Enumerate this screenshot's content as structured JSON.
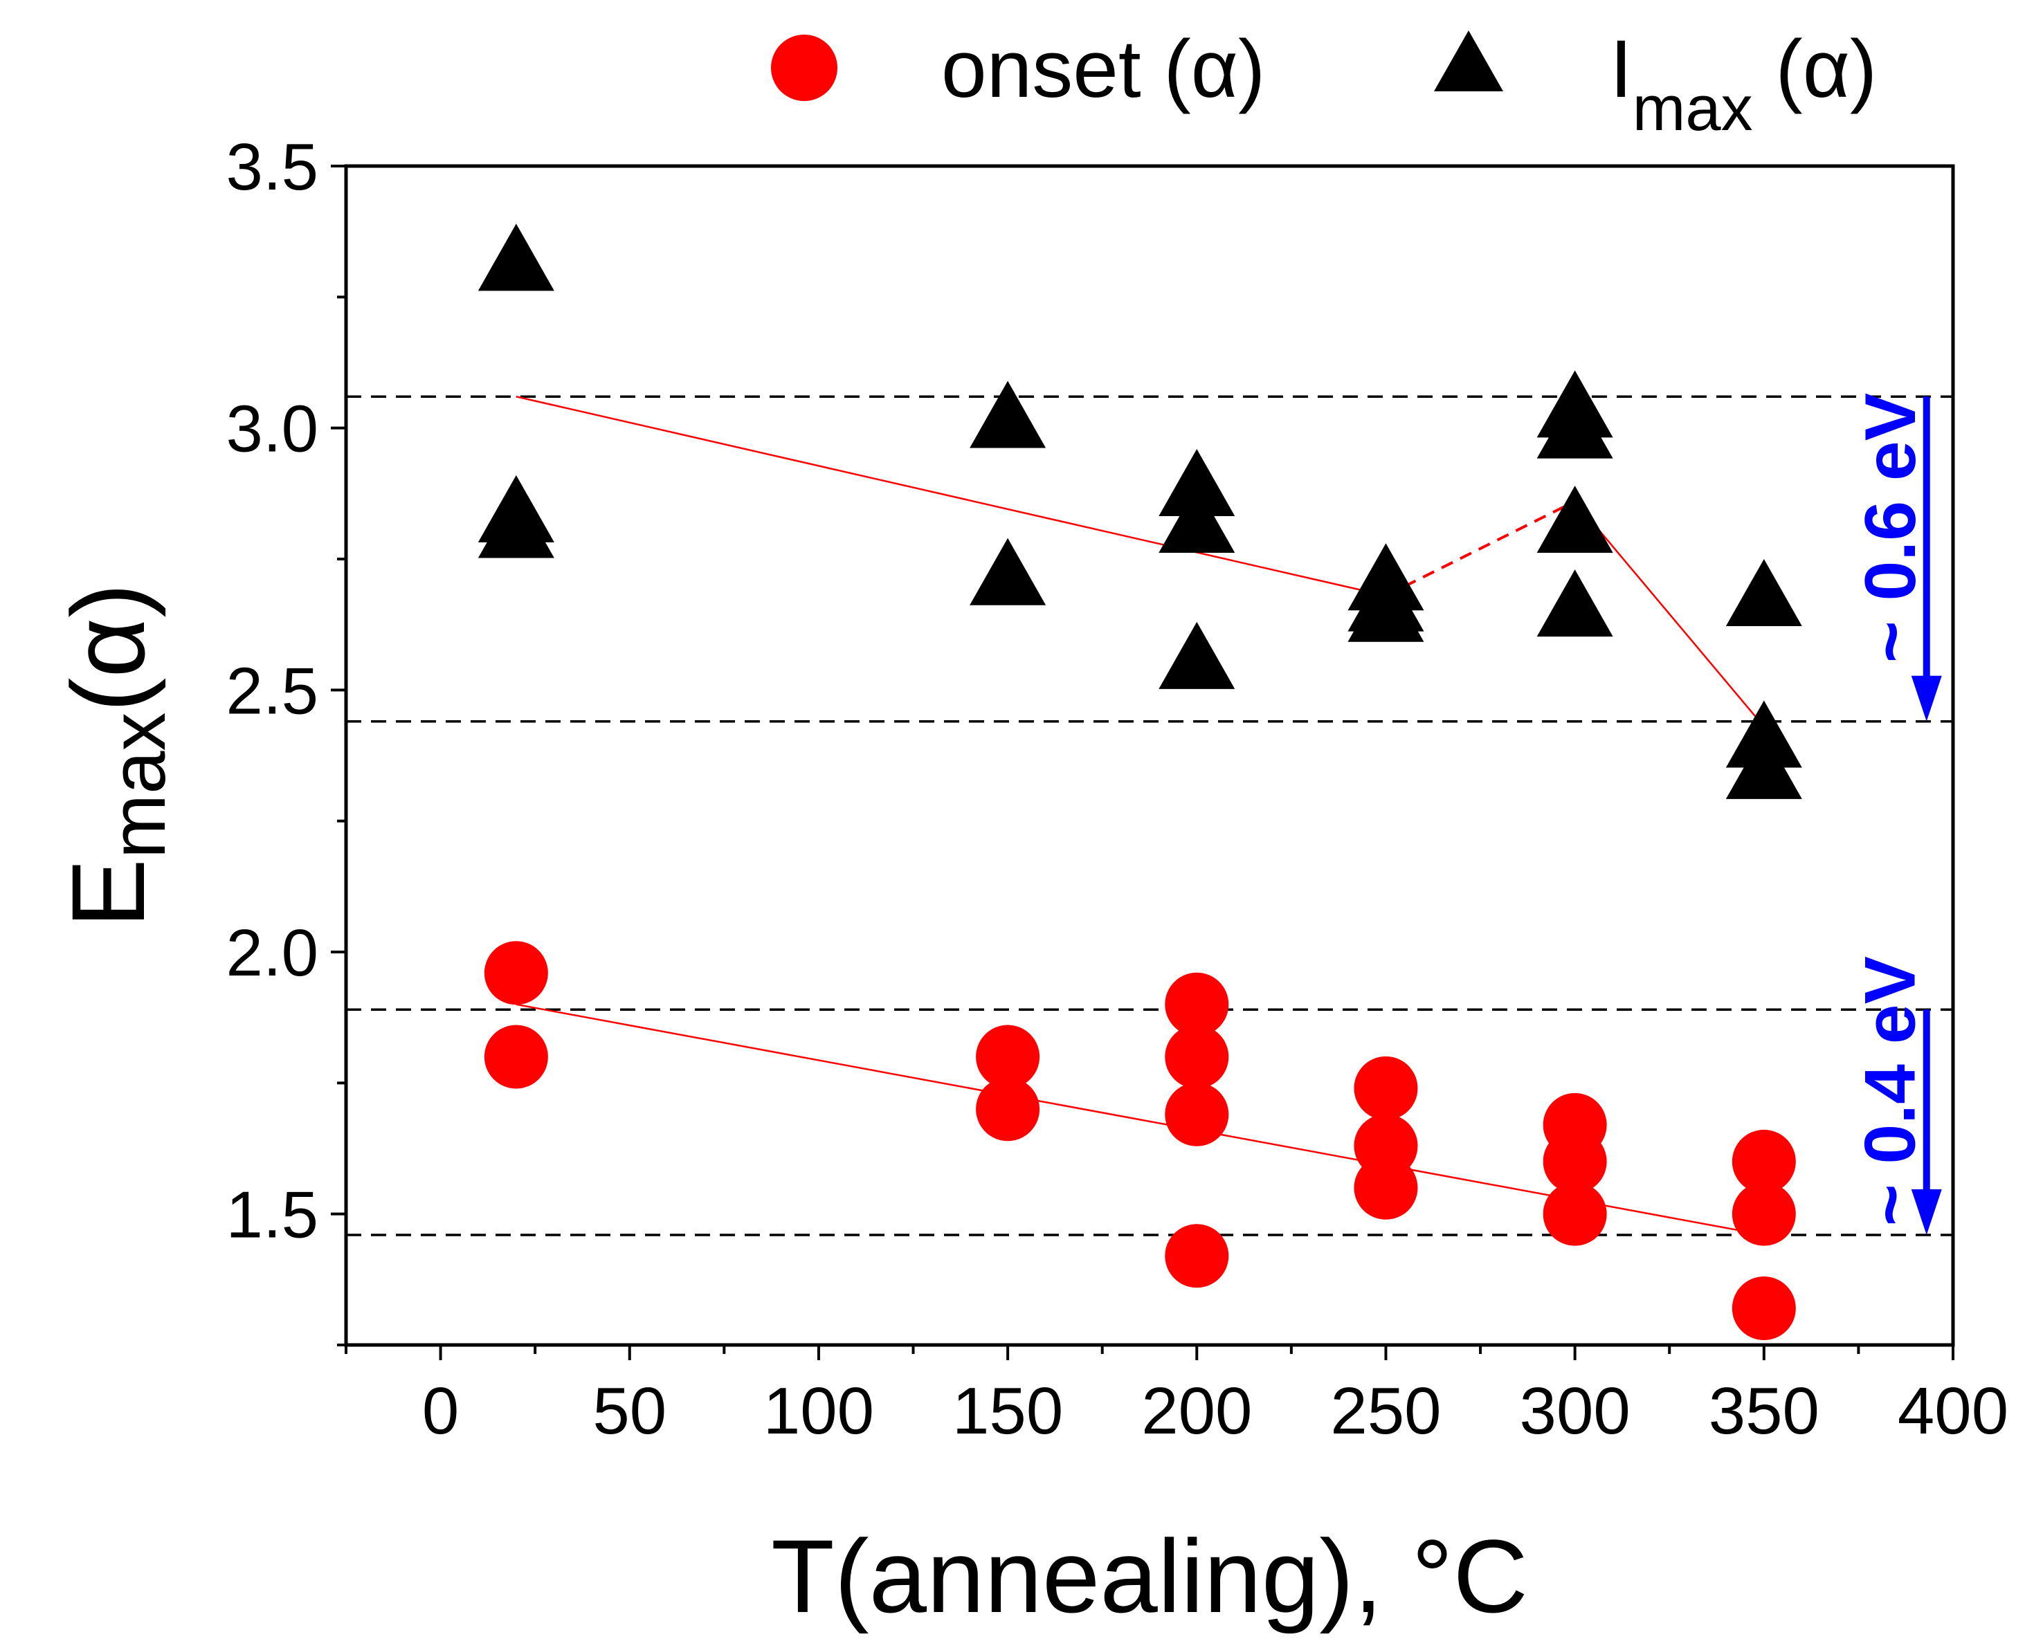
{
  "chart_data": {
    "type": "scatter",
    "xlabel": "T(annealing), °C",
    "ylabel": {
      "main": "E",
      "sub": "max",
      "suffix": "(α)"
    },
    "xlim": [
      -25,
      400
    ],
    "ylim": [
      1.25,
      3.5
    ],
    "xticks": [
      0,
      50,
      100,
      150,
      200,
      250,
      300,
      350,
      400
    ],
    "xtick_labels": [
      "0",
      "50",
      "100",
      "150",
      "200",
      "250",
      "300",
      "350",
      "400"
    ],
    "yticks": [
      1.5,
      2.0,
      2.5,
      3.0,
      3.5
    ],
    "ytick_labels": [
      "1.5",
      "2.0",
      "2.5",
      "3.0",
      "3.5"
    ],
    "legend_position": "top",
    "series": [
      {
        "name": "onset (α)",
        "legend": {
          "main": "onset (α)"
        },
        "marker": "circle",
        "color": "#ff0000",
        "points": [
          [
            20,
            1.96
          ],
          [
            20,
            1.8
          ],
          [
            150,
            1.8
          ],
          [
            150,
            1.7
          ],
          [
            200,
            1.9
          ],
          [
            200,
            1.8
          ],
          [
            200,
            1.69
          ],
          [
            200,
            1.42
          ],
          [
            250,
            1.74
          ],
          [
            250,
            1.63
          ],
          [
            250,
            1.55
          ],
          [
            300,
            1.67
          ],
          [
            300,
            1.6
          ],
          [
            300,
            1.5
          ],
          [
            350,
            1.6
          ],
          [
            350,
            1.5
          ],
          [
            350,
            1.32
          ]
        ]
      },
      {
        "name": "Imax (α)",
        "legend": {
          "main": "I",
          "sub": "max",
          "suffix": " (α)"
        },
        "marker": "triangle",
        "color": "#000000",
        "points": [
          [
            20,
            3.32
          ],
          [
            20,
            2.84
          ],
          [
            20,
            2.81
          ],
          [
            150,
            3.02
          ],
          [
            150,
            2.72
          ],
          [
            200,
            2.89
          ],
          [
            200,
            2.82
          ],
          [
            200,
            2.56
          ],
          [
            250,
            2.71
          ],
          [
            250,
            2.67
          ],
          [
            250,
            2.65
          ],
          [
            300,
            3.04
          ],
          [
            300,
            3.0
          ],
          [
            300,
            2.82
          ],
          [
            300,
            2.66
          ],
          [
            350,
            2.68
          ],
          [
            350,
            2.41
          ],
          [
            350,
            2.35
          ]
        ]
      }
    ],
    "fit_lines": [
      {
        "color": "#ff0000",
        "style": "solid",
        "points": [
          [
            20,
            3.06
          ],
          [
            250,
            2.68
          ]
        ]
      },
      {
        "color": "#ff0000",
        "style": "dashed",
        "points": [
          [
            250,
            2.68
          ],
          [
            300,
            2.86
          ]
        ]
      },
      {
        "color": "#ff0000",
        "style": "solid",
        "points": [
          [
            300,
            2.86
          ],
          [
            350,
            2.43
          ]
        ]
      },
      {
        "color": "#ff0000",
        "style": "solid",
        "points": [
          [
            20,
            1.9
          ],
          [
            350,
            1.46
          ]
        ]
      }
    ],
    "reference_lines": [
      {
        "y": 3.06,
        "color": "#000000",
        "style": "dashed"
      },
      {
        "y": 2.44,
        "color": "#000000",
        "style": "dashed"
      },
      {
        "y": 1.89,
        "color": "#000000",
        "style": "dashed"
      },
      {
        "y": 1.46,
        "color": "#000000",
        "style": "dashed"
      }
    ],
    "annotations": [
      {
        "text": "~ 0.6 eV",
        "color": "#0000ff",
        "arrow": {
          "x": 393,
          "from_y": 3.06,
          "to_y": 2.44
        }
      },
      {
        "text": "~ 0.4 eV",
        "color": "#0000ff",
        "arrow": {
          "x": 393,
          "from_y": 1.89,
          "to_y": 1.46
        }
      }
    ]
  }
}
